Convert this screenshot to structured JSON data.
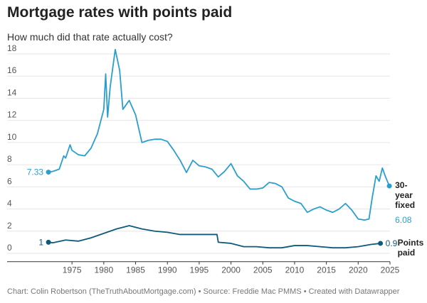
{
  "chart_data": {
    "type": "line",
    "title": "Mortgage rates with points paid",
    "subtitle": "How much did that rate actually cost?",
    "footer": "Chart: Colin Robertson (TheTruthAboutMortgage.com) • Source: Freddie Mac PMMS • Created with Datawrapper",
    "xlim": [
      1968,
      2025
    ],
    "xticks": [
      1975,
      1980,
      1985,
      1990,
      1995,
      2000,
      2005,
      2010,
      2015,
      2020,
      2025
    ],
    "ylim": [
      -0.75,
      18.5
    ],
    "yticks": [
      0,
      2,
      4,
      6,
      8,
      10,
      12,
      14,
      16,
      18
    ],
    "grid": true,
    "series": [
      {
        "name": "30-year fixed",
        "color": "#2a9fcd",
        "x": [
          1971.3,
          1972,
          1973,
          1973.7,
          1974,
          1974.7,
          1975,
          1976,
          1977,
          1978,
          1979,
          1980,
          1980.3,
          1980.6,
          1981,
          1981.8,
          1982.5,
          1983,
          1984,
          1985,
          1986,
          1987,
          1988,
          1989,
          1990,
          1991,
          1992,
          1993,
          1994,
          1995,
          1996,
          1997,
          1998,
          1999,
          2000,
          2001,
          2002,
          2003,
          2004,
          2005,
          2006,
          2007,
          2008,
          2009,
          2010,
          2011,
          2012,
          2013,
          2014,
          2015,
          2016,
          2017,
          2018,
          2019,
          2020,
          2021,
          2021.7,
          2022.2,
          2022.8,
          2023.3,
          2023.8,
          2024.3,
          2024.9
        ],
        "values": [
          7.33,
          7.4,
          7.6,
          8.8,
          8.6,
          9.8,
          9.3,
          8.9,
          8.8,
          9.5,
          10.8,
          13.0,
          16.2,
          12.3,
          15.0,
          18.4,
          16.5,
          13.0,
          13.8,
          12.5,
          10.0,
          10.2,
          10.3,
          10.3,
          10.1,
          9.3,
          8.4,
          7.3,
          8.4,
          7.9,
          7.8,
          7.6,
          6.9,
          7.4,
          8.1,
          7.0,
          6.5,
          5.8,
          5.8,
          5.9,
          6.4,
          6.3,
          6.0,
          5.0,
          4.7,
          4.5,
          3.7,
          4.0,
          4.2,
          3.9,
          3.7,
          4.0,
          4.5,
          3.9,
          3.1,
          3.0,
          3.1,
          5.0,
          7.0,
          6.5,
          7.7,
          6.9,
          6.08
        ]
      },
      {
        "name": "Points paid",
        "color": "#0e5a7a",
        "x": [
          1971.3,
          1972,
          1974,
          1976,
          1978,
          1980,
          1982,
          1984,
          1986,
          1988,
          1990,
          1992,
          1994,
          1996,
          1997.8,
          1998,
          2000,
          2002,
          2004,
          2006,
          2008,
          2010,
          2012,
          2014,
          2016,
          2018,
          2020,
          2022,
          2023.5
        ],
        "values": [
          1,
          0.95,
          1.2,
          1.1,
          1.4,
          1.8,
          2.2,
          2.5,
          2.2,
          2.0,
          1.9,
          1.7,
          1.7,
          1.7,
          1.7,
          1.0,
          0.9,
          0.6,
          0.6,
          0.5,
          0.5,
          0.7,
          0.7,
          0.6,
          0.5,
          0.5,
          0.6,
          0.8,
          0.9
        ]
      }
    ]
  }
}
